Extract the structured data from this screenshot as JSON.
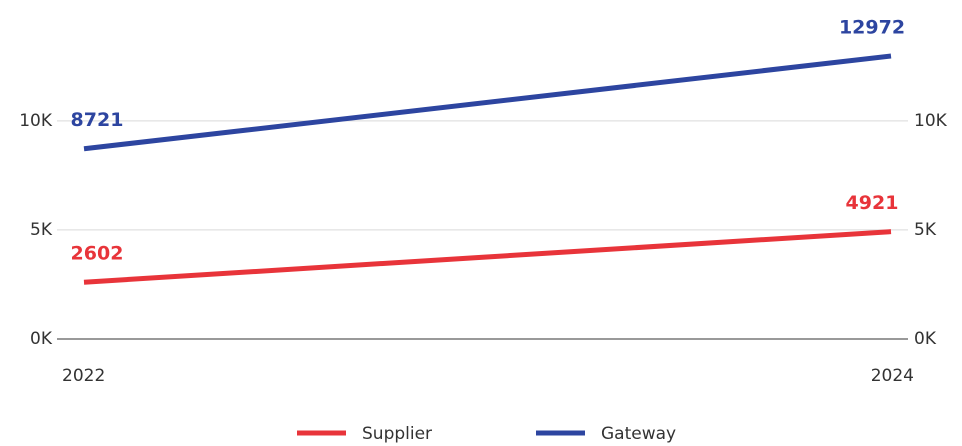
{
  "chart_data": {
    "type": "line",
    "x": [
      "2022",
      "2024"
    ],
    "series": [
      {
        "name": "Supplier",
        "values": [
          2602,
          4921
        ],
        "labels": [
          "2602",
          "4921"
        ],
        "color": "#e8343a"
      },
      {
        "name": "Gateway",
        "values": [
          8721,
          12972
        ],
        "labels": [
          "8721",
          "12972"
        ],
        "color": "#2d45a0"
      }
    ],
    "y_ticks": [
      {
        "value": 0,
        "label": "0K"
      },
      {
        "value": 5000,
        "label": "5K"
      },
      {
        "value": 10000,
        "label": "10K"
      }
    ],
    "ylim": [
      0,
      12972
    ],
    "grid": true,
    "axes": "left and right, same scale",
    "legend_position": "bottom-center",
    "title": "",
    "xlabel": "",
    "ylabel": ""
  }
}
